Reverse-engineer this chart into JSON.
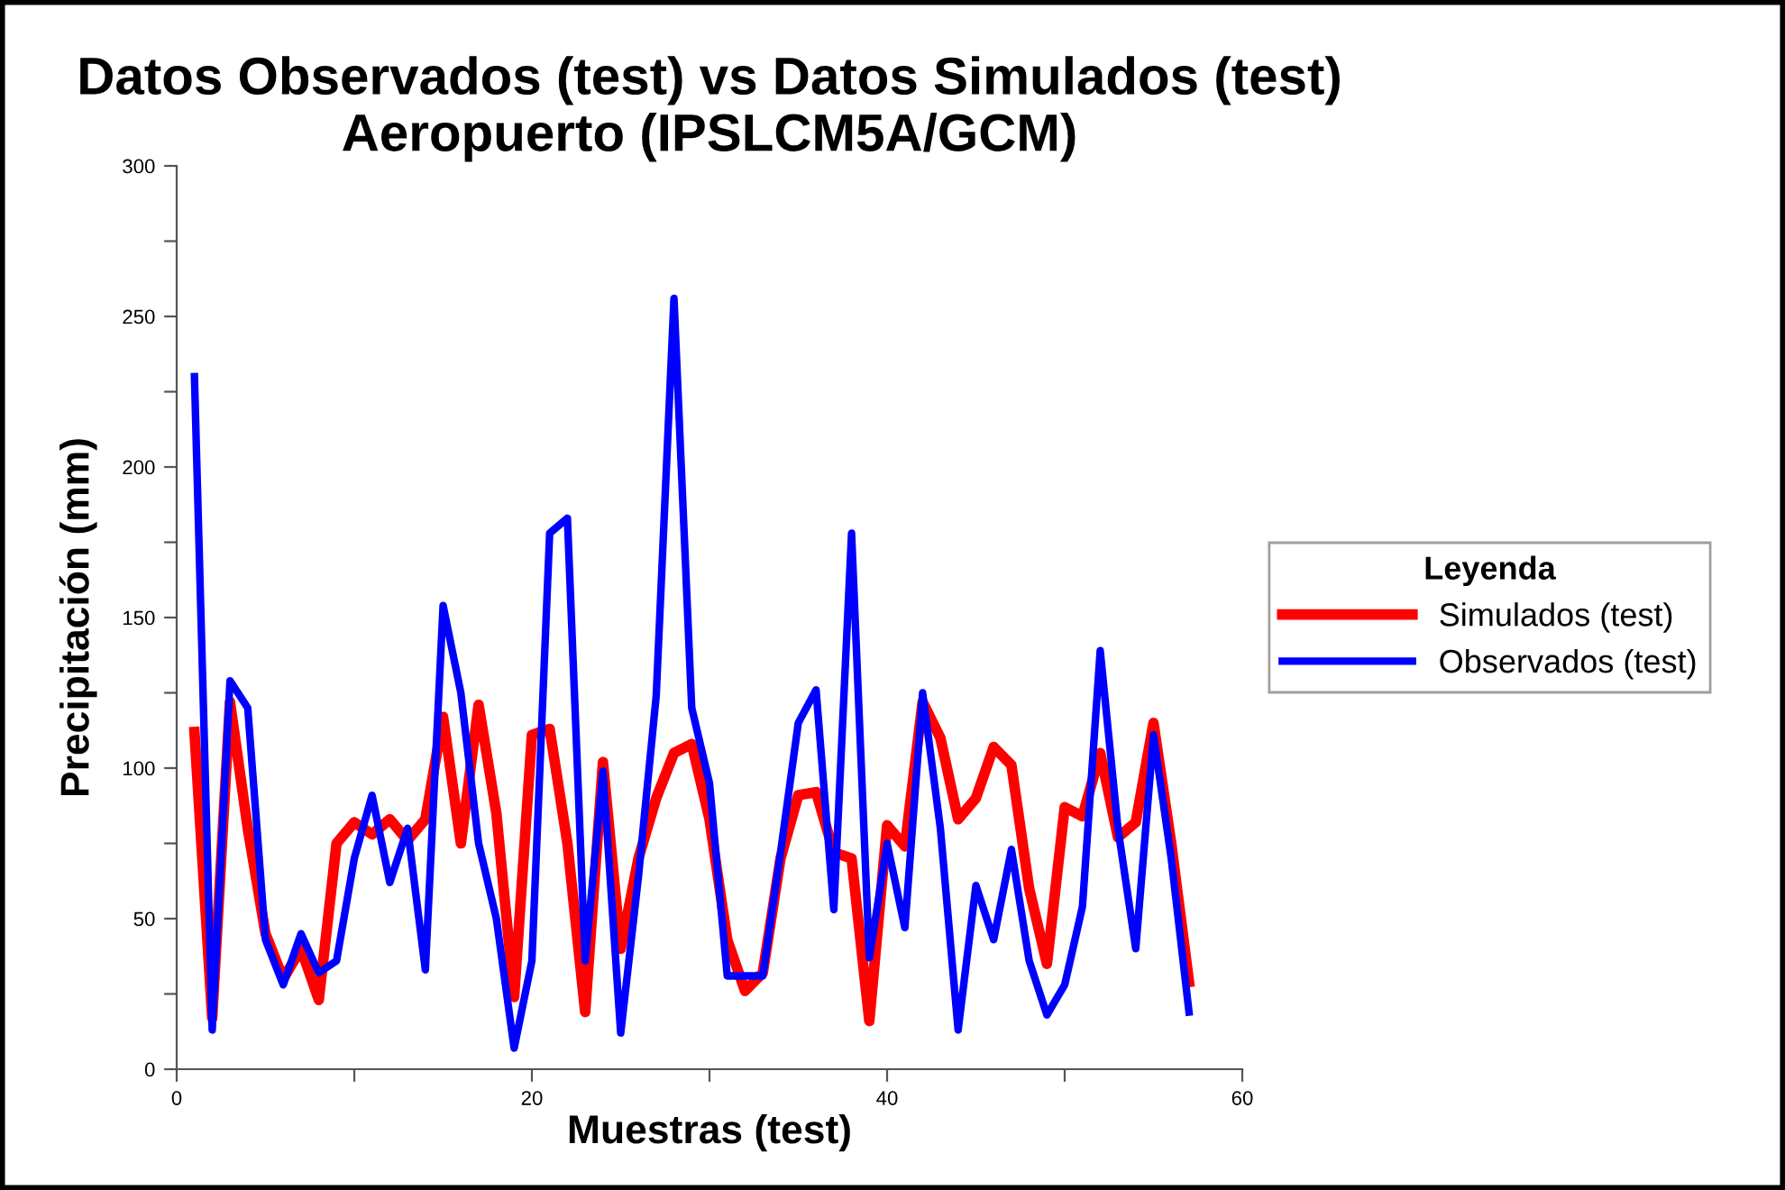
{
  "chart_data": {
    "type": "line",
    "title": "Datos Observados (test) vs Datos Simulados (test)\nAeropuerto (IPSLCM5A/GCM)",
    "xlabel": "Muestras (test)",
    "ylabel": "Precipitación (mm)",
    "legend_title": "Leyenda",
    "x": [
      1,
      2,
      3,
      4,
      5,
      6,
      7,
      8,
      9,
      10,
      11,
      12,
      13,
      14,
      15,
      16,
      17,
      18,
      19,
      20,
      21,
      22,
      23,
      24,
      25,
      26,
      27,
      28,
      29,
      30,
      31,
      32,
      33,
      34,
      35,
      36,
      37,
      38,
      39,
      40,
      41,
      42,
      43,
      44,
      45,
      46,
      47,
      48,
      49,
      50,
      51,
      52,
      53,
      54,
      55,
      56,
      57
    ],
    "series": [
      {
        "name": "Simulados (test)",
        "color": "#ff0000",
        "values": [
          112,
          17,
          122,
          80,
          45,
          30,
          40,
          23,
          75,
          82,
          78,
          83,
          76,
          83,
          117,
          75,
          121,
          85,
          24,
          111,
          113,
          75,
          19,
          102,
          40,
          70,
          90,
          105,
          108,
          83,
          43,
          26,
          32,
          70,
          91,
          92,
          72,
          70,
          16,
          81,
          74,
          122,
          110,
          83,
          90,
          107,
          101,
          60,
          35,
          87,
          84,
          105,
          77,
          82,
          115,
          75,
          29
        ]
      },
      {
        "name": "Observados (test)",
        "color": "#0000ff",
        "values": [
          230,
          13,
          129,
          120,
          43,
          28,
          45,
          32,
          36,
          70,
          91,
          62,
          80,
          33,
          154,
          125,
          75,
          50,
          7,
          36,
          178,
          183,
          36,
          99,
          12,
          64,
          124,
          256,
          120,
          95,
          31,
          31,
          31,
          72,
          115,
          126,
          53,
          178,
          37,
          75,
          47,
          125,
          80,
          13,
          61,
          43,
          73,
          36,
          18,
          28,
          54,
          139,
          80,
          40,
          111,
          70,
          19
        ]
      }
    ],
    "xlim": [
      0,
      60
    ],
    "xticks": [
      0,
      {
        "value": 10,
        "label": null
      },
      20,
      {
        "value": 30,
        "label": null
      },
      40,
      {
        "value": 50,
        "label": null
      },
      60
    ],
    "ylim": [
      0,
      300
    ],
    "yticks": [
      0,
      {
        "value": 25,
        "label": null
      },
      50,
      {
        "value": 75,
        "label": null
      },
      100,
      {
        "value": 125,
        "label": null
      },
      150,
      {
        "value": 175,
        "label": null
      },
      200,
      {
        "value": 225,
        "label": null
      },
      250,
      {
        "value": 275,
        "label": null
      },
      300
    ],
    "grid": false,
    "legend": "right",
    "line_style": "solid",
    "marker": "none"
  }
}
